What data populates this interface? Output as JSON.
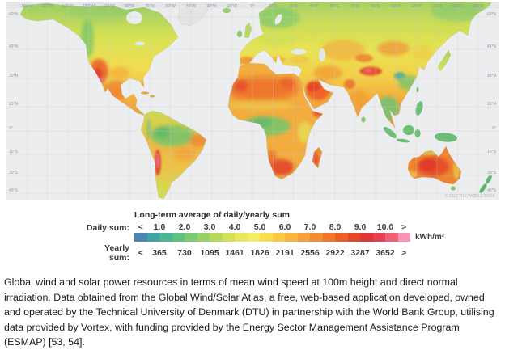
{
  "map": {
    "axis": {
      "lon_labels": [
        "165°W",
        "150°W",
        "135°W",
        "120°W",
        "105°W",
        "90°W",
        "75°W",
        "60°W",
        "45°W",
        "30°W",
        "15°W",
        "0°",
        "15°E",
        "30°E",
        "45°E",
        "60°E",
        "75°E",
        "90°E",
        "105°E",
        "120°E",
        "135°E",
        "150°E",
        "165°E"
      ],
      "lat_labels": [
        "60°N",
        "45°N",
        "30°N",
        "15°N",
        "0°",
        "15°S",
        "30°S",
        "45°S"
      ]
    },
    "copyright": "© 2017 THE WORLD BANK"
  },
  "legend": {
    "title": "Long-term average of daily/yearly sum",
    "daily_label": "Daily sum:",
    "yearly_label": "Yearly sum:",
    "less_than": "<",
    "greater_than": ">",
    "unit": "kWh/m²",
    "daily_values": [
      "1.0",
      "2.0",
      "3.0",
      "4.0",
      "5.0",
      "6.0",
      "7.0",
      "8.0",
      "9.0",
      "10.0"
    ],
    "yearly_values": [
      "365",
      "730",
      "1095",
      "1461",
      "1826",
      "2191",
      "2556",
      "2922",
      "3287",
      "3652"
    ],
    "colors": [
      "#4a86ae",
      "#42a3a4",
      "#4db498",
      "#63c085",
      "#7cca74",
      "#98d167",
      "#b6d95b",
      "#d2e055",
      "#e9e75c",
      "#f4ec64",
      "#f8dd4c",
      "#f9c945",
      "#f9b53d",
      "#f6a037",
      "#f38b30",
      "#f0762b",
      "#ec6027",
      "#e74729",
      "#e23337",
      "#e74052",
      "#ef6076",
      "#f795b5"
    ]
  },
  "caption": {
    "text": "Global wind and solar power resources in terms of mean wind speed at 100m height and direct normal irradiation. Data obtained from the Global Wind/Solar Atlas, a free, web-based application developed, owned and operated by the Technical University of Denmark (DTU) in partnership with the World Bank Group, utilising data provided by Vortex, with funding provided by the Energy Sector Management Assistance Program (ESMAP) [53, 54]."
  }
}
